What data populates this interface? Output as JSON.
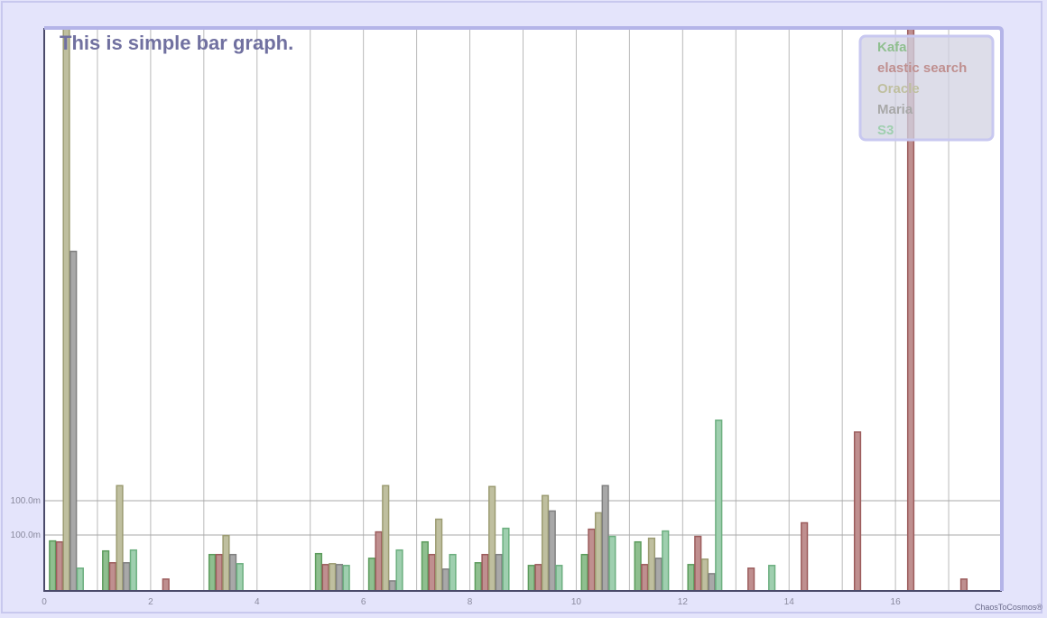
{
  "chart_data": {
    "type": "bar",
    "title": "This is simple bar graph.",
    "x_ticks": [
      "0",
      "2",
      "4",
      "6",
      "8",
      "10",
      "12",
      "14",
      "16"
    ],
    "y_tick_labels": [
      "100.0m",
      "100.0m"
    ],
    "xlim": [
      0,
      18
    ],
    "ylim": [
      0,
      0.62
    ],
    "grid": true,
    "legend_position": "top-right",
    "series": [
      {
        "name": "Kafa",
        "color": "#8fbf8f",
        "stroke": "#5c9c5c",
        "values": [
          [
            0,
            0.055
          ],
          [
            1,
            0.044
          ],
          [
            2,
            0
          ],
          [
            3,
            0.04
          ],
          [
            4,
            0
          ],
          [
            5,
            0.041
          ],
          [
            6,
            0.036
          ],
          [
            7,
            0.054
          ],
          [
            8,
            0.031
          ],
          [
            9,
            0.028
          ],
          [
            10,
            0.04
          ],
          [
            11,
            0.054
          ],
          [
            12,
            0.029
          ],
          [
            13,
            0
          ],
          [
            14,
            0
          ],
          [
            15,
            0
          ],
          [
            16,
            0
          ],
          [
            17,
            0
          ]
        ]
      },
      {
        "name": "elastic search",
        "color": "#bf8f8f",
        "stroke": "#9c5c5c",
        "values": [
          [
            0,
            0.054
          ],
          [
            1,
            0.031
          ],
          [
            2,
            0.013
          ],
          [
            3,
            0.04
          ],
          [
            4,
            0
          ],
          [
            5,
            0.029
          ],
          [
            6,
            0.065
          ],
          [
            7,
            0.04
          ],
          [
            8,
            0.04
          ],
          [
            9,
            0.029
          ],
          [
            10,
            0.068
          ],
          [
            11,
            0.029
          ],
          [
            12,
            0.06
          ],
          [
            13,
            0.025
          ],
          [
            14,
            0.075
          ],
          [
            15,
            0.175
          ],
          [
            16,
            0.625
          ],
          [
            17,
            0.013
          ]
        ]
      },
      {
        "name": "Oracle",
        "color": "#bfbf9f",
        "stroke": "#9c9c72",
        "values": [
          [
            0,
            0.625
          ],
          [
            1,
            0.116
          ],
          [
            2,
            0
          ],
          [
            3,
            0.061
          ],
          [
            4,
            0
          ],
          [
            5,
            0.03
          ],
          [
            6,
            0.116
          ],
          [
            7,
            0.079
          ],
          [
            8,
            0.115
          ],
          [
            9,
            0.105
          ],
          [
            10,
            0.086
          ],
          [
            11,
            0.058
          ],
          [
            12,
            0.035
          ],
          [
            13,
            0
          ],
          [
            14,
            0
          ],
          [
            15,
            0
          ],
          [
            16,
            0
          ],
          [
            17,
            0
          ]
        ]
      },
      {
        "name": "Maria",
        "color": "#a8a8a8",
        "stroke": "#808080",
        "values": [
          [
            0,
            0.374
          ],
          [
            1,
            0.031
          ],
          [
            2,
            0
          ],
          [
            3,
            0.04
          ],
          [
            4,
            0
          ],
          [
            5,
            0.029
          ],
          [
            6,
            0.011
          ],
          [
            7,
            0.024
          ],
          [
            8,
            0.04
          ],
          [
            9,
            0.088
          ],
          [
            10,
            0.116
          ],
          [
            11,
            0.036
          ],
          [
            12,
            0.019
          ],
          [
            13,
            0
          ],
          [
            14,
            0
          ],
          [
            15,
            0
          ],
          [
            16,
            0
          ],
          [
            17,
            0
          ]
        ]
      },
      {
        "name": "S3",
        "color": "#9fcfaf",
        "stroke": "#6caf7f",
        "values": [
          [
            0,
            0.025
          ],
          [
            1,
            0.045
          ],
          [
            2,
            0
          ],
          [
            3,
            0.03
          ],
          [
            4,
            0
          ],
          [
            5,
            0.028
          ],
          [
            6,
            0.045
          ],
          [
            7,
            0.04
          ],
          [
            8,
            0.069
          ],
          [
            9,
            0.028
          ],
          [
            10,
            0.06
          ],
          [
            11,
            0.066
          ],
          [
            12,
            0.188
          ],
          [
            13,
            0.028
          ],
          [
            14,
            0
          ],
          [
            15,
            0
          ],
          [
            16,
            0
          ],
          [
            17,
            0
          ]
        ]
      }
    ]
  },
  "footer": {
    "credit": "ChaosToCosmos®"
  }
}
